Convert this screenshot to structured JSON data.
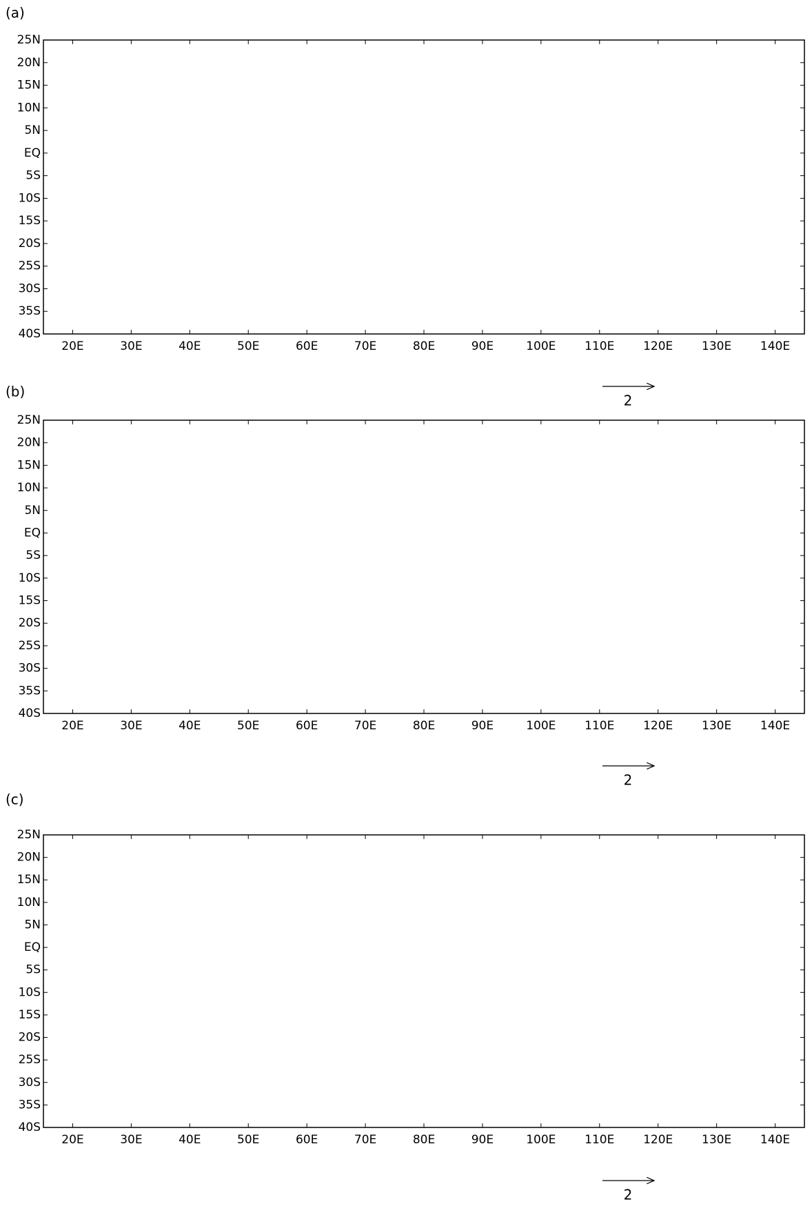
{
  "panels": [
    {
      "label": "(a)",
      "reference_vector": 2
    },
    {
      "label": "(b)",
      "reference_vector": 2
    },
    {
      "label": "(c)",
      "reference_vector": 2
    }
  ],
  "xaxis": {
    "lim": [
      15,
      145
    ],
    "ticks": [
      {
        "value": 20,
        "label": "20E"
      },
      {
        "value": 30,
        "label": "30E"
      },
      {
        "value": 40,
        "label": "40E"
      },
      {
        "value": 50,
        "label": "50E"
      },
      {
        "value": 60,
        "label": "60E"
      },
      {
        "value": 70,
        "label": "70E"
      },
      {
        "value": 80,
        "label": "80E"
      },
      {
        "value": 90,
        "label": "90E"
      },
      {
        "value": 100,
        "label": "100E"
      },
      {
        "value": 110,
        "label": "110E"
      },
      {
        "value": 120,
        "label": "120E"
      },
      {
        "value": 130,
        "label": "130E"
      },
      {
        "value": 140,
        "label": "140E"
      }
    ]
  },
  "yaxis": {
    "lim": [
      -40,
      25
    ],
    "ticks": [
      {
        "value": 25,
        "label": "25N"
      },
      {
        "value": 20,
        "label": "20N"
      },
      {
        "value": 15,
        "label": "15N"
      },
      {
        "value": 10,
        "label": "10N"
      },
      {
        "value": 5,
        "label": "5N"
      },
      {
        "value": 0,
        "label": "EQ"
      },
      {
        "value": -5,
        "label": "5S"
      },
      {
        "value": -10,
        "label": "10S"
      },
      {
        "value": -15,
        "label": "15S"
      },
      {
        "value": -20,
        "label": "20S"
      },
      {
        "value": -25,
        "label": "25S"
      },
      {
        "value": -30,
        "label": "30S"
      },
      {
        "value": -35,
        "label": "35S"
      },
      {
        "value": -40,
        "label": "40S"
      }
    ]
  }
}
